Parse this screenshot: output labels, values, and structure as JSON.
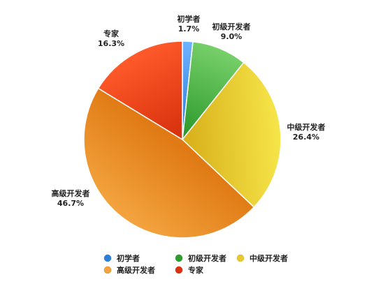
{
  "chart_data": {
    "type": "pie",
    "series": [
      {
        "name": "初学者",
        "value": 1.7,
        "label": "1.7%",
        "color": "#2f7fd8",
        "color_light": "#6fb3ff"
      },
      {
        "name": "初级开发者",
        "value": 9.0,
        "label": "9.0%",
        "color": "#2e9b2e",
        "color_light": "#78d06a"
      },
      {
        "name": "中级开发者",
        "value": 26.4,
        "label": "26.4%",
        "color": "#d9b21c",
        "color_light": "#f6e64a"
      },
      {
        "name": "高级开发者",
        "value": 46.7,
        "label": "46.7%",
        "color": "#e07a14",
        "color_light": "#f3a43f"
      },
      {
        "name": "专家",
        "value": 16.3,
        "label": "16.3%",
        "color": "#d8320e",
        "color_light": "#ff5a2a"
      }
    ],
    "legend_position": "bottom",
    "start_angle": "top",
    "direction": "clockwise"
  }
}
